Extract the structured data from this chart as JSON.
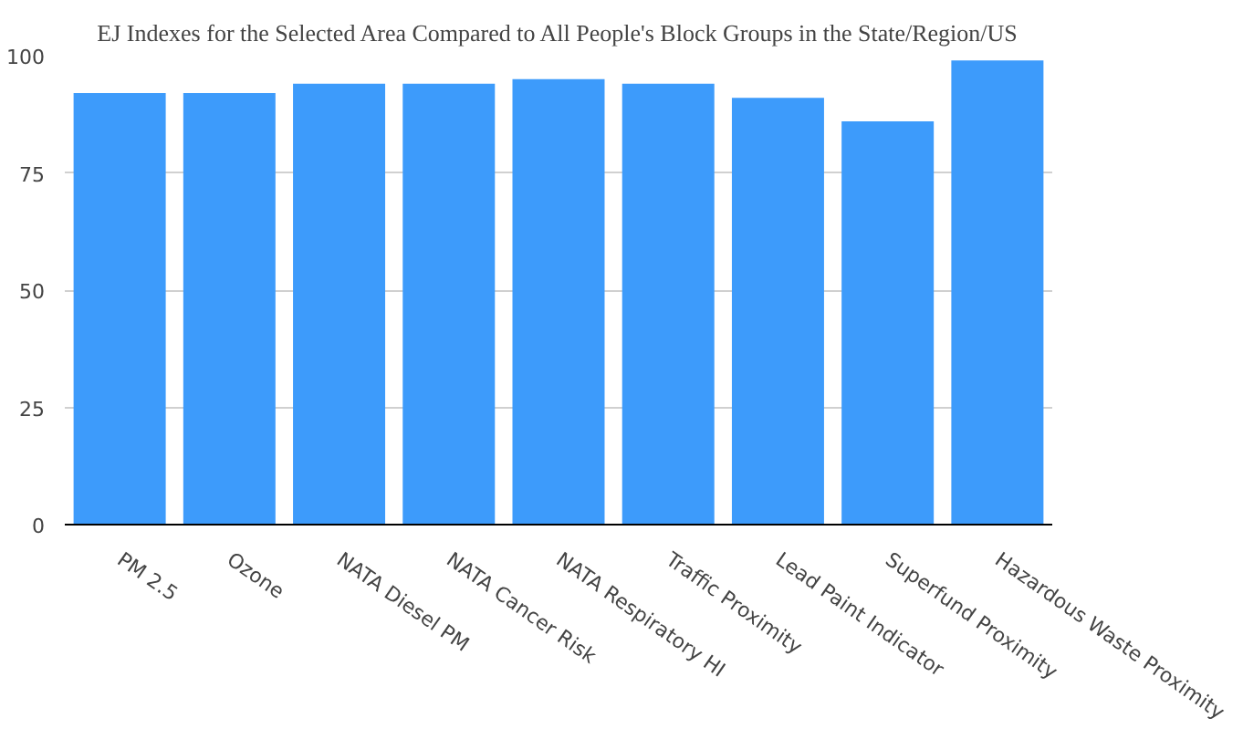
{
  "chart_data": {
    "type": "bar",
    "title": "EJ Indexes for the Selected Area Compared to All People's Block Groups in the State/Region/US",
    "categories": [
      "PM 2.5",
      "Ozone",
      "NATA Diesel PM",
      "NATA Cancer Risk",
      "NATA Respiratory HI",
      "Traffic Proximity",
      "Lead Paint Indicator",
      "Superfund Proximity",
      "Hazardous Waste Proximity"
    ],
    "values": [
      92,
      92,
      94,
      94,
      95,
      94,
      91,
      86,
      99
    ],
    "color": "#3d9bfb",
    "ylim": [
      0,
      100
    ],
    "yticks": [
      0,
      25,
      50,
      75,
      100
    ],
    "grid": "y"
  }
}
